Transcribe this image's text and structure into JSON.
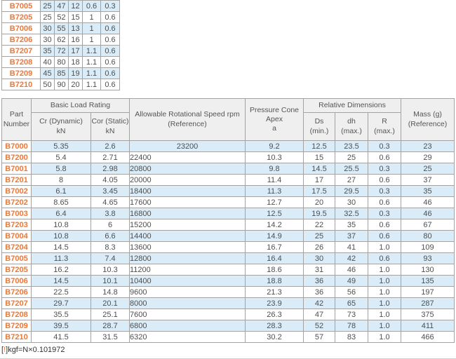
{
  "colors": {
    "accent_orange": "#ee7633",
    "row_shade_blue": "#d9ecf7",
    "header_gray": "#efefef",
    "border_gray": "#a3a3a3"
  },
  "top_table": {
    "rows": [
      {
        "part": "B7005",
        "cells": [
          "25",
          "47",
          "12",
          "0.6",
          "0.3"
        ],
        "shaded": true
      },
      {
        "part": "B7205",
        "cells": [
          "25",
          "52",
          "15",
          "1",
          "0.6"
        ],
        "shaded": false
      },
      {
        "part": "B7006",
        "cells": [
          "30",
          "55",
          "13",
          "1",
          "0.6"
        ],
        "shaded": true
      },
      {
        "part": "B7206",
        "cells": [
          "30",
          "62",
          "16",
          "1",
          "0.6"
        ],
        "shaded": false
      },
      {
        "part": "B7207",
        "cells": [
          "35",
          "72",
          "17",
          "1.1",
          "0.6"
        ],
        "shaded": true
      },
      {
        "part": "B7208",
        "cells": [
          "40",
          "80",
          "18",
          "1.1",
          "0.6"
        ],
        "shaded": false
      },
      {
        "part": "B7209",
        "cells": [
          "45",
          "85",
          "19",
          "1.1",
          "0.6"
        ],
        "shaded": true
      },
      {
        "part": "B7210",
        "cells": [
          "50",
          "90",
          "20",
          "1.1",
          "0.6"
        ],
        "shaded": false
      }
    ]
  },
  "main_table": {
    "headers": {
      "part_number": "Part\nNumber",
      "basic_load_rating": "Basic Load Rating",
      "cr_dynamic": "Cr (Dynamic)\nkN",
      "cor_static": "Cor (Static)\nkN",
      "speed": "Allowable Rotational Speed rpm\n(Reference)",
      "pressure_cone": "Pressure Cone\nApex\na",
      "relative_dimensions": "Relative Dimensions",
      "ds_min": "Ds\n(min.)",
      "dh_max": "dh\n(max.)",
      "r_max": "R\n(max.)",
      "mass": "Mass (g)\n(Reference)"
    },
    "rows": [
      {
        "part": "B7000",
        "cells": [
          "5.35",
          "2.6",
          "23200",
          "9.2",
          "12.5",
          "23.5",
          "0.3",
          "23"
        ],
        "shaded": true,
        "speed_centered": true
      },
      {
        "part": "B7200",
        "cells": [
          "5.4",
          "2.71",
          "22400",
          "10.3",
          "15",
          "25",
          "0.6",
          "29"
        ],
        "shaded": false,
        "speed_centered": false
      },
      {
        "part": "B7001",
        "cells": [
          "5.8",
          "2.98",
          "20800",
          "9.8",
          "14.5",
          "25.5",
          "0.3",
          "25"
        ],
        "shaded": true,
        "speed_centered": false
      },
      {
        "part": "B7201",
        "cells": [
          "8",
          "4.05",
          "20000",
          "11.4",
          "17",
          "27",
          "0.6",
          "37"
        ],
        "shaded": false,
        "speed_centered": false
      },
      {
        "part": "B7002",
        "cells": [
          "6.1",
          "3.45",
          "18400",
          "11.3",
          "17.5",
          "29.5",
          "0.3",
          "35"
        ],
        "shaded": true,
        "speed_centered": false
      },
      {
        "part": "B7202",
        "cells": [
          "8.65",
          "4.65",
          "17600",
          "12.7",
          "20",
          "30",
          "0.6",
          "46"
        ],
        "shaded": false,
        "speed_centered": false
      },
      {
        "part": "B7003",
        "cells": [
          "6.4",
          "3.8",
          "16800",
          "12.5",
          "19.5",
          "32.5",
          "0.3",
          "46"
        ],
        "shaded": true,
        "speed_centered": false
      },
      {
        "part": "B7203",
        "cells": [
          "10.8",
          "6",
          "15200",
          "14.2",
          "22",
          "35",
          "0.6",
          "67"
        ],
        "shaded": false,
        "speed_centered": false
      },
      {
        "part": "B7004",
        "cells": [
          "10.8",
          "6.6",
          "14400",
          "14.9",
          "25",
          "37",
          "0.6",
          "80"
        ],
        "shaded": true,
        "speed_centered": false
      },
      {
        "part": "B7204",
        "cells": [
          "14.5",
          "8.3",
          "13600",
          "16.7",
          "26",
          "41",
          "1.0",
          "109"
        ],
        "shaded": false,
        "speed_centered": false
      },
      {
        "part": "B7005",
        "cells": [
          "11.3",
          "7.4",
          "12800",
          "16.4",
          "30",
          "42",
          "0.6",
          "93"
        ],
        "shaded": true,
        "speed_centered": false
      },
      {
        "part": "B7205",
        "cells": [
          "16.2",
          "10.3",
          "11200",
          "18.6",
          "31",
          "46",
          "1.0",
          "130"
        ],
        "shaded": false,
        "speed_centered": false
      },
      {
        "part": "B7006",
        "cells": [
          "14.5",
          "10.1",
          "10400",
          "18.8",
          "36",
          "49",
          "1.0",
          "135"
        ],
        "shaded": true,
        "speed_centered": false
      },
      {
        "part": "B7206",
        "cells": [
          "22.5",
          "14.8",
          "9600",
          "21.3",
          "36",
          "56",
          "1.0",
          "197"
        ],
        "shaded": false,
        "speed_centered": false
      },
      {
        "part": "B7207",
        "cells": [
          "29.7",
          "20.1",
          "8000",
          "23.9",
          "42",
          "65",
          "1.0",
          "287"
        ],
        "shaded": true,
        "speed_centered": false
      },
      {
        "part": "B7208",
        "cells": [
          "35.5",
          "25.1",
          "7600",
          "26.3",
          "47",
          "73",
          "1.0",
          "375"
        ],
        "shaded": false,
        "speed_centered": false
      },
      {
        "part": "B7209",
        "cells": [
          "39.5",
          "28.7",
          "6800",
          "28.3",
          "52",
          "78",
          "1.0",
          "411"
        ],
        "shaded": true,
        "speed_centered": false
      },
      {
        "part": "B7210",
        "cells": [
          "41.5",
          "31.5",
          "6320",
          "30.2",
          "57",
          "83",
          "1.0",
          "466"
        ],
        "shaded": false,
        "speed_centered": false
      }
    ]
  },
  "footnote": {
    "open_bracket": "[",
    "bang": "!",
    "close_bracket": "]",
    "text": "kgf=N×0.101972"
  }
}
